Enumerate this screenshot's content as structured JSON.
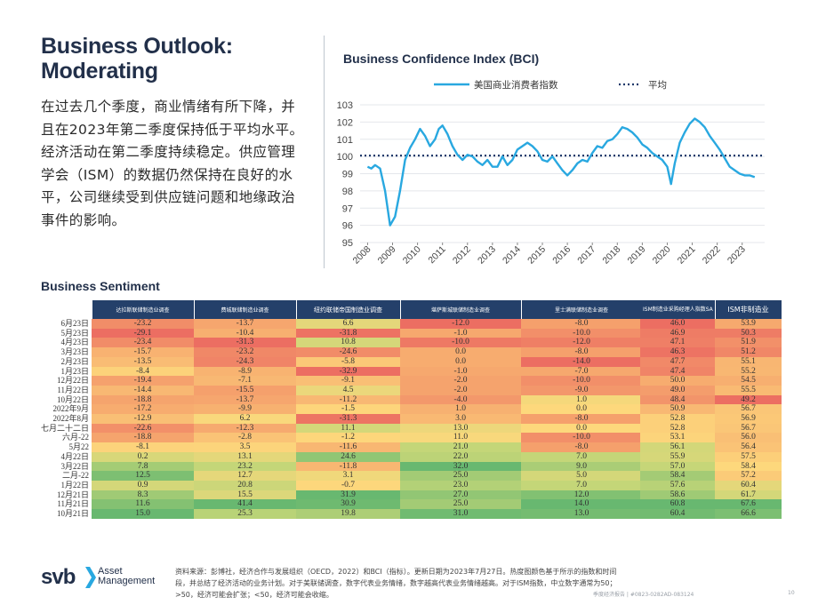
{
  "title": {
    "line1": "Business Outlook:",
    "line2": "Moderating"
  },
  "body_text": "在过去几个季度，商业情绪有所下降，并且在2023年第二季度保持低于平均水平。经济活动在第二季度持续稳定。供应管理学会（ISM）的数据仍然保持在良好的水平，公司继续受到供应链问题和地缘政治事件的影响。",
  "chart_data": {
    "type": "line",
    "title": "Business Confidence Index (BCI)",
    "legend": [
      "美国商业消费者指数",
      "平均"
    ],
    "x_ticks": [
      "2008",
      "2009",
      "2010",
      "2011",
      "2012",
      "2013",
      "2014",
      "2015",
      "2016",
      "2017",
      "2018",
      "2019",
      "2020",
      "2021",
      "2022",
      "2023"
    ],
    "ylim": [
      95,
      103
    ],
    "y_ticks": [
      95,
      96,
      97,
      98,
      99,
      100,
      101,
      102,
      103
    ],
    "average": 100.05,
    "series": [
      {
        "name": "美国商业消费者指数",
        "color": "#29a8e0",
        "x": [
          2008.0,
          2008.15,
          2008.3,
          2008.5,
          2008.7,
          2008.9,
          2009.1,
          2009.3,
          2009.5,
          2009.7,
          2009.9,
          2010.1,
          2010.3,
          2010.5,
          2010.7,
          2010.85,
          2011.0,
          2011.2,
          2011.4,
          2011.6,
          2011.8,
          2012.0,
          2012.2,
          2012.4,
          2012.6,
          2012.8,
          2013.0,
          2013.2,
          2013.4,
          2013.6,
          2013.8,
          2014.0,
          2014.2,
          2014.4,
          2014.6,
          2014.8,
          2015.0,
          2015.2,
          2015.4,
          2015.6,
          2015.8,
          2016.0,
          2016.2,
          2016.4,
          2016.6,
          2016.8,
          2017.0,
          2017.2,
          2017.4,
          2017.6,
          2017.8,
          2018.0,
          2018.2,
          2018.4,
          2018.6,
          2018.8,
          2019.0,
          2019.2,
          2019.4,
          2019.6,
          2019.8,
          2020.0,
          2020.15,
          2020.3,
          2020.5,
          2020.7,
          2020.9,
          2021.1,
          2021.3,
          2021.5,
          2021.7,
          2021.9,
          2022.1,
          2022.3,
          2022.5,
          2022.7,
          2022.9,
          2023.1,
          2023.3,
          2023.5
        ],
        "values": [
          99.4,
          99.3,
          99.5,
          99.3,
          98.0,
          96.0,
          96.5,
          98.0,
          99.8,
          100.5,
          101.0,
          101.6,
          101.2,
          100.6,
          101.0,
          101.6,
          101.8,
          101.3,
          100.6,
          100.1,
          99.8,
          100.1,
          100.0,
          99.7,
          99.5,
          99.8,
          99.4,
          99.4,
          100.0,
          99.5,
          99.8,
          100.4,
          100.6,
          100.8,
          100.6,
          100.3,
          99.8,
          99.7,
          100.0,
          99.6,
          99.2,
          98.9,
          99.2,
          99.6,
          99.8,
          99.7,
          100.2,
          100.6,
          100.5,
          100.9,
          101.0,
          101.3,
          101.7,
          101.6,
          101.4,
          101.1,
          100.7,
          100.5,
          100.2,
          100.0,
          99.8,
          99.4,
          98.4,
          99.6,
          100.8,
          101.4,
          101.9,
          102.2,
          102.0,
          101.7,
          101.2,
          100.8,
          100.4,
          99.9,
          99.4,
          99.2,
          99.0,
          98.9,
          98.9,
          98.8
        ]
      }
    ]
  },
  "sentiment": {
    "title": "Business Sentiment",
    "headers": [
      "达拉斯联储制造业调查",
      "费城联储制造业调查",
      "纽约联储帝国制造业调查",
      "堪萨斯城联储制造业调查",
      "里士满联储制造业调查"
    ],
    "row_labels": [
      "6月23日",
      "5月23日",
      "4月23日",
      "3月23日",
      "2月23日",
      "1月23日",
      "12月22日",
      "11月22日",
      "10月22日",
      "2022年9月",
      "2022年8月",
      "七月二十二日",
      "六月-22",
      "5月22",
      "4月22日",
      "3月22日",
      "二月-22",
      "1月22日",
      "12月21日",
      "11月21日",
      "10月21日"
    ],
    "rows": [
      [
        "-23.2",
        "-13.7",
        "6.6",
        "-12.0",
        "-8.0"
      ],
      [
        "-29.1",
        "-10.4",
        "-31.8",
        "-1.0",
        "-10.0"
      ],
      [
        "-23.4",
        "-31.3",
        "10.8",
        "-10.0",
        "-12.0"
      ],
      [
        "-15.7",
        "-23.2",
        "-24.6",
        "0.0",
        "-8.0"
      ],
      [
        "-13.5",
        "-24.3",
        "-5.8",
        "0.0",
        "-14.0"
      ],
      [
        "-8.4",
        "-8.9",
        "-32.9",
        "-1.0",
        "-7.0"
      ],
      [
        "-19.4",
        "-7.1",
        "-9.1",
        "-2.0",
        "-10.0"
      ],
      [
        "-14.4",
        "-15.5",
        "4.5",
        "-2.0",
        "-9.0"
      ],
      [
        "-18.8",
        "-13.7",
        "-11.2",
        "-4.0",
        "1.0"
      ],
      [
        "-17.2",
        "-9.9",
        "-1.5",
        "1.0",
        "0.0"
      ],
      [
        "-12.9",
        "6.2",
        "-31.3",
        "3.0",
        "-8.0"
      ],
      [
        "-22.6",
        "-12.3",
        "11.1",
        "13.0",
        "0.0"
      ],
      [
        "-18.8",
        "-2.8",
        "-1.2",
        "11.0",
        "-10.0"
      ],
      [
        "-8.1",
        "3.5",
        "-11.6",
        "21.0",
        "-8.0"
      ],
      [
        "0.2",
        "13.1",
        "24.6",
        "22.0",
        "7.0"
      ],
      [
        "7.8",
        "23.2",
        "-11.8",
        "32.0",
        "9.0"
      ],
      [
        "12.5",
        "12.7",
        "3.1",
        "25.0",
        "5.0"
      ],
      [
        "0.9",
        "20.8",
        "-0.7",
        "23.0",
        "7.0"
      ],
      [
        "8.3",
        "15.5",
        "31.9",
        "27.0",
        "12.0"
      ],
      [
        "11.6",
        "41.4",
        "30.9",
        "25.0",
        "14.0"
      ],
      [
        "15.0",
        "25.3",
        "19.8",
        "31.0",
        "13.0"
      ]
    ]
  },
  "ism": {
    "headers": [
      "ISM制造业采购经理人指数SA",
      "ISM非制造业"
    ],
    "rows": [
      [
        "46.0",
        "53.9"
      ],
      [
        "46.9",
        "50.3"
      ],
      [
        "47.1",
        "51.9"
      ],
      [
        "46.3",
        "51.2"
      ],
      [
        "47.7",
        "55.1"
      ],
      [
        "47.4",
        "55.2"
      ],
      [
        "50.0",
        "54.5"
      ],
      [
        "49.0",
        "55.5"
      ],
      [
        "48.4",
        "49.2"
      ],
      [
        "50.9",
        "56.7"
      ],
      [
        "52.8",
        "56.9"
      ],
      [
        "52.8",
        "56.7"
      ],
      [
        "53.1",
        "56.0"
      ],
      [
        "56.1",
        "56.4"
      ],
      [
        "55.9",
        "57.5"
      ],
      [
        "57.0",
        "58.4"
      ],
      [
        "58.4",
        "57.2"
      ],
      [
        "57.6",
        "60.4"
      ],
      [
        "58.6",
        "61.7"
      ],
      [
        "60.8",
        "67.6"
      ],
      [
        "60.4",
        "66.6"
      ]
    ]
  },
  "footer": {
    "note": "资料来源：彭博社，经济合作与发展组织（OECD，2022）和BCI（指标）。更新日期为2023年7月27日。热度图颜色基于所示的指数和时间段，并总结了经济活动的业务计划。对于美联储调查，数字代表业务情绪，数字越高代表业务情绪越高。对于ISM指数，中立数字通常为50；>50，经济可能会扩张；<50，经济可能会收缩。",
    "page_ref": "季度经济报告 | #0823-0282AD-083124",
    "page_num": "10"
  },
  "logo": {
    "svb": "svb",
    "line1": "Asset",
    "line2": "Management"
  },
  "colors": {
    "navy": "#24406a",
    "line": "#29a8e0",
    "avg": "#1f3a6b"
  }
}
